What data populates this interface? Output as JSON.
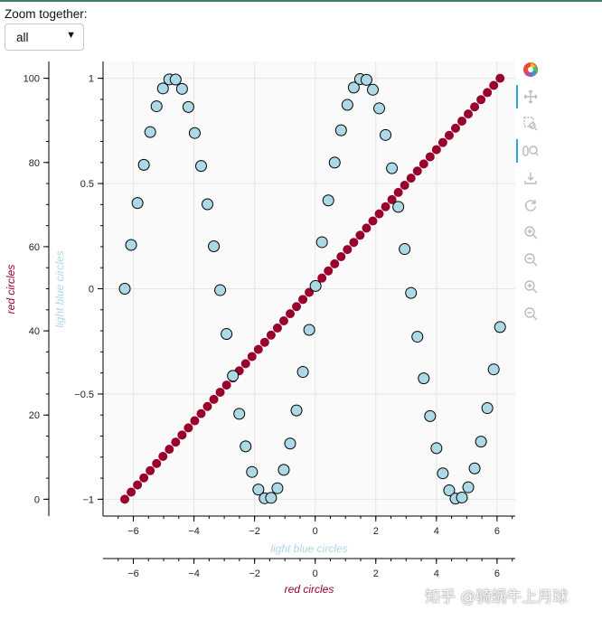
{
  "header": {
    "zoom_label": "Zoom together:",
    "zoom_value": "all"
  },
  "toolbar": {
    "tools": [
      {
        "name": "bokeh-logo-icon",
        "active": false
      },
      {
        "name": "pan-icon",
        "active": true
      },
      {
        "name": "box-zoom-icon",
        "active": false
      },
      {
        "name": "wheel-zoom-icon",
        "active": true
      },
      {
        "name": "save-icon",
        "active": false
      },
      {
        "name": "reset-icon",
        "active": false
      },
      {
        "name": "zoom-in-icon",
        "active": false
      },
      {
        "name": "zoom-out-icon",
        "active": false
      },
      {
        "name": "zoom-in-icon",
        "active": false
      },
      {
        "name": "zoom-out-icon",
        "active": false
      }
    ]
  },
  "watermark": "知乎 @骑蜗牛上月球",
  "colors": {
    "red": "#99002b",
    "light_blue": "#add8e6",
    "toolbar_active": "#26aae1"
  },
  "chart_data": {
    "type": "scatter",
    "series": [
      {
        "name": "red circles",
        "color": "#99002b",
        "x_range": "left: 'x' of red circles (range -2π..2π, 60 points)",
        "x_start": -6.2832,
        "x_end": 6.1,
        "y_start": 0,
        "y_end": 100,
        "count": 60,
        "formula": "linear"
      },
      {
        "name": "light blue circles",
        "color": "#add8e6",
        "x_start": -6.2832,
        "x_end": 6.1,
        "count": 60,
        "formula": "sin"
      }
    ],
    "axes": {
      "x_bottom_inner": {
        "label": "light blue circles",
        "range": [
          -7,
          6.6
        ],
        "ticks": [
          -6,
          -4,
          -2,
          0,
          2,
          4,
          6
        ]
      },
      "x_bottom_outer": {
        "label": "red circles",
        "range": [
          -7,
          6.6
        ],
        "ticks": [
          -6,
          -4,
          -2,
          0,
          2,
          4,
          6
        ]
      },
      "y_left_outer": {
        "label": "red circles",
        "range": [
          -4,
          104
        ],
        "ticks": [
          0,
          20,
          40,
          60,
          80,
          100
        ]
      },
      "y_left_inner": {
        "label": "light blue circles",
        "range": [
          -1.08,
          1.08
        ],
        "ticks": [
          -1,
          -0.5,
          0,
          0.5,
          1
        ],
        "tick_labels": [
          "−1",
          "−0.5",
          "0",
          "0.5",
          "1"
        ]
      }
    },
    "grid": true
  }
}
